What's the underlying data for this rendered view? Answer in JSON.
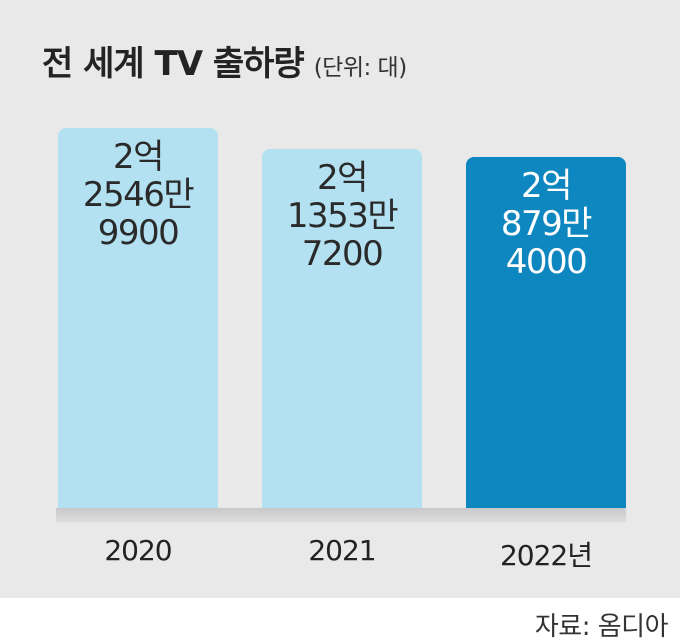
{
  "chart_data": {
    "type": "bar",
    "title": "전 세계 TV 출하량",
    "unit_note": "(단위: 대)",
    "categories": [
      "2020",
      "2021",
      "2022년"
    ],
    "values": [
      225469900,
      213537200,
      208794000
    ],
    "value_labels": [
      "2억\n2546만\n9900",
      "2억\n1353만\n7200",
      "2억\n879만\n4000"
    ],
    "highlight_index": 2,
    "ylim": [
      0,
      225469900
    ],
    "grid": false,
    "legend": false
  },
  "colors": {
    "panel_background": "#e9e9ea",
    "bar_light": "#b3e1f1",
    "bar_highlight": "#0e86bf",
    "label_dark": "#2a2a2a",
    "label_light": "#ffffff"
  },
  "source": "자료: 옴디아"
}
